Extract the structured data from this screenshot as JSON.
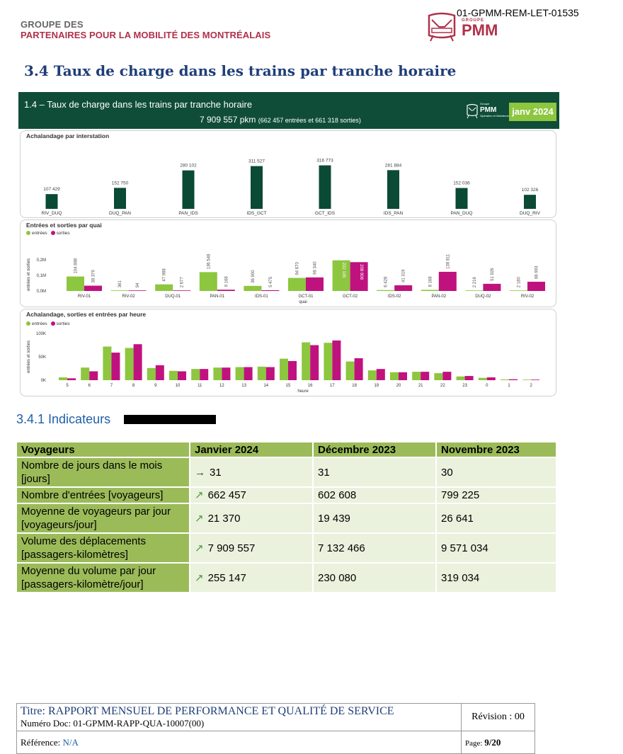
{
  "header": {
    "org_line1": "GROUPE DES",
    "org_line2": "PARTENAIRES POUR LA MOBILITÉ DES MONTRÉALAIS",
    "doc_id": "01-GPMM-REM-LET-01535",
    "logo_small": "GROUPE",
    "logo_text": "PMM"
  },
  "section": {
    "title": "3.4  Taux de charge dans les trains par tranche horaire"
  },
  "dashboard": {
    "title": "1.4 – Taux de charge dans les trains par tranche horaire",
    "total_main": "7 909 557 pkm",
    "total_detail": "(662 457 entrées et 661 318 sorties)",
    "logo_text": "PMM",
    "logo_small": "Groupe",
    "logo_sub": "Opération et Maintenance",
    "period_badge": "janv 2024",
    "colors": {
      "header_bg": "#0f4d39",
      "entrees": "#8dc63f",
      "sorties": "#c0127e",
      "interstation": "#0b4a35"
    }
  },
  "chart_data": [
    {
      "type": "bar",
      "title": "Achalandage par interstation",
      "categories": [
        "RIV_DUQ",
        "DUQ_PAN",
        "PAN_IDS",
        "IDS_GCT",
        "GCT_IDS",
        "IDS_PAN",
        "PAN_DUQ",
        "DUQ_RIV"
      ],
      "values": [
        107429,
        152750,
        280102,
        311527,
        316773,
        281884,
        152036,
        102326
      ],
      "labels": [
        "107 429",
        "152 750",
        "280 102",
        "311 527",
        "316 773",
        "281 884",
        "152 036",
        "102 326"
      ],
      "ylim": [
        0,
        330000
      ]
    },
    {
      "type": "bar",
      "title": "Entrées et sorties par quai",
      "xlabel": "quai",
      "ylabel": "entrées et sorties",
      "legend": [
        "entrées",
        "sorties"
      ],
      "categories": [
        "RIV-01",
        "RIV-02",
        "DUQ-01",
        "PAN-01",
        "IDS-01",
        "GCT-01",
        "GCT-02",
        "IDS-02",
        "PAN-02",
        "DUQ-02",
        "RIV-02"
      ],
      "yticks": [
        "0,0M",
        "0,1M",
        "0,2M"
      ],
      "ylim": [
        0,
        0.24
      ],
      "series": [
        {
          "name": "entrées",
          "values": [
            104888,
            361,
            47988,
            136548,
            36900,
            94670,
            222105,
            6428,
            8168,
            2216,
            2180
          ],
          "labels": [
            "104 888",
            "361",
            "47 988",
            "136 548",
            "36 900",
            "94 670",
            "222 105",
            "6 428",
            "8 168",
            "2 216",
            "2 180"
          ]
        },
        {
          "name": "sorties",
          "values": [
            38379,
            94,
            2677,
            9166,
            5475,
            98340,
            208908,
            41319,
            138811,
            51926,
            66993
          ],
          "labels": [
            "38 379",
            "94",
            "2 677",
            "9 166",
            "5 475",
            "98 340",
            "208 908",
            "41 319",
            "138 811",
            "51 926",
            "66 993"
          ]
        }
      ]
    },
    {
      "type": "bar",
      "title": "Achalandage, sorties et entrées par heure",
      "xlabel": "heure",
      "ylabel": "entrées et sorties",
      "legend": [
        "entrées",
        "sorties"
      ],
      "categories": [
        "5",
        "6",
        "7",
        "8",
        "9",
        "10",
        "11",
        "12",
        "13",
        "14",
        "15",
        "16",
        "17",
        "18",
        "19",
        "20",
        "21",
        "22",
        "23",
        "0",
        "1",
        "2"
      ],
      "yticks": [
        "0K",
        "50K",
        "100K"
      ],
      "ylim": [
        0,
        100000
      ],
      "series": [
        {
          "name": "entrées",
          "values": [
            6000,
            27000,
            72000,
            69000,
            26000,
            20000,
            24000,
            27000,
            28000,
            29000,
            46000,
            81000,
            80000,
            40000,
            21000,
            17000,
            18000,
            15000,
            8000,
            5000,
            1500,
            1000
          ]
        },
        {
          "name": "sorties",
          "values": [
            4000,
            19000,
            59000,
            77000,
            32000,
            19000,
            24000,
            27000,
            28000,
            28000,
            41000,
            75000,
            85000,
            47000,
            24000,
            17000,
            18000,
            18000,
            9000,
            6000,
            2000,
            1000
          ]
        }
      ]
    }
  ],
  "subsection": {
    "title": "3.4.1  Indicateurs"
  },
  "indicators": {
    "headers": [
      "Voyageurs",
      "Janvier 2024",
      "Décembre 2023",
      "Novembre 2023"
    ],
    "rows": [
      {
        "label": "Nombre de jours dans le mois [jours]",
        "trend": "→",
        "jan": "31",
        "dec": "31",
        "nov": "30"
      },
      {
        "label": "Nombre d'entrées [voyageurs]",
        "trend": "↗",
        "jan": "662 457",
        "dec": "602 608",
        "nov": "799 225"
      },
      {
        "label": "Moyenne de voyageurs par jour [voyageurs/jour]",
        "trend": "↗",
        "jan": "21 370",
        "dec": "19 439",
        "nov": "26 641"
      },
      {
        "label": "Volume des déplacements [passagers-kilomètres]",
        "trend": "↗",
        "jan": "7 909 557",
        "dec": "7 132 466",
        "nov": "9 571 034"
      },
      {
        "label": "Moyenne du volume par jour [passagers-kilomètre/jour]",
        "trend": "↗",
        "jan": "255 147",
        "dec": "230 080",
        "nov": "319 034"
      }
    ]
  },
  "footer": {
    "title": "Titre: RAPPORT MENSUEL DE PERFORMANCE ET QUALITÉ DE SERVICE",
    "doc_num": "Numéro Doc: 01-GPMM-RAPP-QUA-10007(00)",
    "revision": "Révision : 00",
    "reference_label": "Référence: ",
    "reference_value": "N/A",
    "page_label": "Page: ",
    "page_value": "9/20"
  }
}
